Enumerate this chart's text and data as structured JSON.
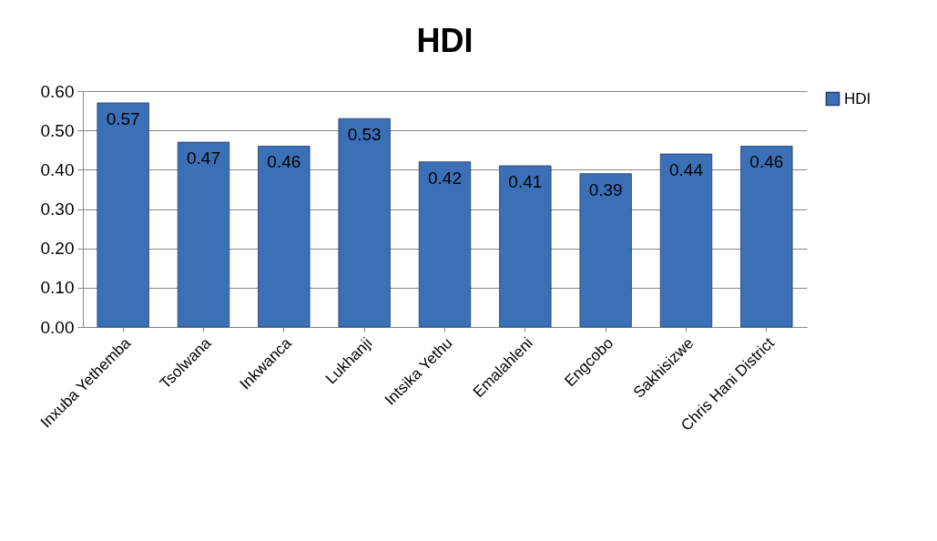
{
  "chart_data": {
    "type": "bar",
    "title": "HDI",
    "categories": [
      "Inxuba Yethemba",
      "Tsolwana",
      "Inkwanca",
      "Lukhanji",
      "Intsika Yethu",
      "Emalahleni",
      "Engcobo",
      "Sakhisizwe",
      "Chris Hani District"
    ],
    "series": [
      {
        "name": "HDI",
        "color": "#3b6fb6",
        "values": [
          0.57,
          0.47,
          0.46,
          0.53,
          0.42,
          0.41,
          0.39,
          0.44,
          0.46
        ]
      }
    ],
    "ylim": [
      0,
      0.6
    ],
    "yticks": [
      {
        "value": 0,
        "label": "0.00"
      },
      {
        "value": 0.1,
        "label": "0.10"
      },
      {
        "value": 0.2,
        "label": "0.20"
      },
      {
        "value": 0.3,
        "label": "0.30"
      },
      {
        "value": 0.4,
        "label": "0.40"
      },
      {
        "value": 0.5,
        "label": "0.50"
      },
      {
        "value": 0.6,
        "label": "0.60"
      }
    ],
    "grid": "y",
    "legend": "right",
    "data_labels": true
  }
}
